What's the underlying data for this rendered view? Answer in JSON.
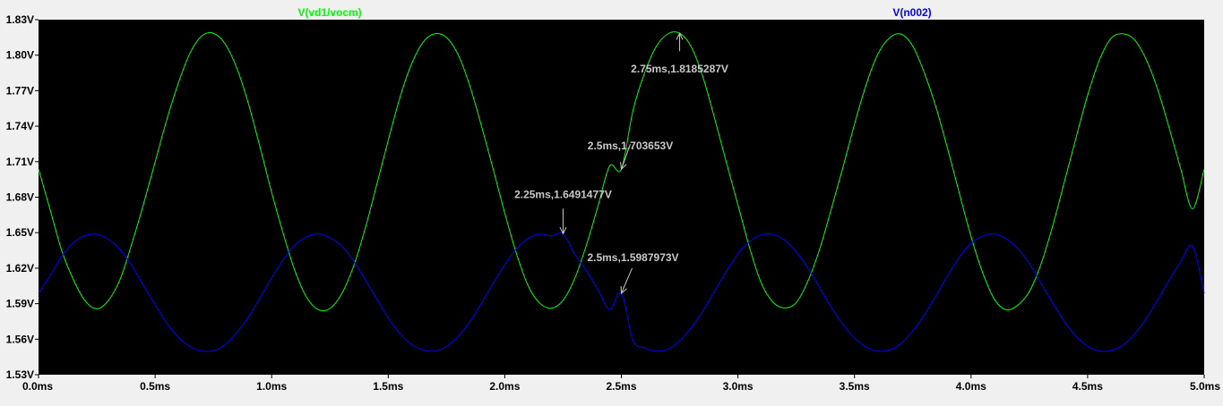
{
  "window": {
    "background": "#000000",
    "frame_color": "#f0f0f0"
  },
  "chart_data": {
    "type": "line",
    "title": "",
    "xlabel": "",
    "ylabel": "",
    "xlim": [
      0,
      5
    ],
    "ylim": [
      1.53,
      1.83
    ],
    "x_unit": "ms",
    "y_unit": "V",
    "grid": false,
    "x_ticks": [
      "0.0ms",
      "0.5ms",
      "1.0ms",
      "1.5ms",
      "2.0ms",
      "2.5ms",
      "3.0ms",
      "3.5ms",
      "4.0ms",
      "4.5ms",
      "5.0ms"
    ],
    "y_ticks": [
      "1.83V",
      "1.80V",
      "1.77V",
      "1.74V",
      "1.71V",
      "1.68V",
      "1.65V",
      "1.62V",
      "1.59V",
      "1.56V",
      "1.53V"
    ],
    "series": [
      {
        "name": "V(vd1/vocm)",
        "color": "#00ff00",
        "x": [
          0,
          0.05,
          0.1,
          0.15,
          0.2,
          0.25,
          0.3,
          0.35,
          0.4,
          0.45,
          0.5,
          0.55,
          0.6,
          0.65,
          0.7,
          0.75,
          0.8,
          0.85,
          0.9,
          0.95,
          1.0,
          1.05,
          1.1,
          1.15,
          1.2,
          1.25,
          1.3,
          1.35,
          1.4,
          1.45,
          1.5,
          1.55,
          1.6,
          1.65,
          1.7,
          1.75,
          1.8,
          1.85,
          1.9,
          1.95,
          2.0,
          2.05,
          2.1,
          2.15,
          2.2,
          2.25,
          2.3,
          2.35,
          2.4,
          2.45,
          2.5,
          2.55,
          2.6,
          2.65,
          2.7,
          2.75,
          2.8,
          2.85,
          2.9,
          2.95,
          3.0,
          3.05,
          3.1,
          3.15,
          3.2,
          3.25,
          3.3,
          3.35,
          3.4,
          3.45,
          3.5,
          3.55,
          3.6,
          3.65,
          3.7,
          3.75,
          3.8,
          3.85,
          3.9,
          3.95,
          4.0,
          4.05,
          4.1,
          4.15,
          4.2,
          4.25,
          4.3,
          4.35,
          4.4,
          4.45,
          4.5,
          4.55,
          4.6,
          4.65,
          4.7,
          4.75,
          4.8,
          4.85,
          4.9,
          4.95,
          5.0
        ],
        "y": [
          1.7037,
          1.6692,
          1.6346,
          1.6101,
          1.5924,
          1.5857,
          1.5928,
          1.6106,
          1.6406,
          1.6739,
          1.7096,
          1.7453,
          1.7765,
          1.8018,
          1.8162,
          1.8185,
          1.8097,
          1.7893,
          1.7592,
          1.7224,
          1.684,
          1.649,
          1.6176,
          1.5954,
          1.5849,
          1.586,
          1.5983,
          1.6209,
          1.6527,
          1.69,
          1.728,
          1.7641,
          1.7925,
          1.8111,
          1.8181,
          1.8149,
          1.8004,
          1.7741,
          1.7402,
          1.7038,
          1.6664,
          1.6323,
          1.6052,
          1.5904,
          1.5862,
          1.5929,
          1.6113,
          1.6394,
          1.6726,
          1.7064,
          1.7037,
          1.7533,
          1.7852,
          1.8074,
          1.8181,
          1.8185,
          1.8069,
          1.7815,
          1.7466,
          1.7097,
          1.6736,
          1.6373,
          1.6075,
          1.5913,
          1.5864,
          1.5909,
          1.609,
          1.6357,
          1.6696,
          1.7048,
          1.7416,
          1.775,
          1.8008,
          1.8145,
          1.8178,
          1.8076,
          1.7849,
          1.7557,
          1.7205,
          1.6832,
          1.6467,
          1.6161,
          1.5938,
          1.5849,
          1.5886,
          1.6003,
          1.6234,
          1.6556,
          1.6927,
          1.73,
          1.7661,
          1.7956,
          1.8141,
          1.8181,
          1.8132,
          1.7969,
          1.7713,
          1.7384,
          1.7034,
          1.6702,
          1.7037
        ]
      },
      {
        "name": "V(n002)",
        "color": "#0000ff",
        "x": [
          0,
          0.05,
          0.1,
          0.15,
          0.2,
          0.25,
          0.3,
          0.35,
          0.4,
          0.45,
          0.5,
          0.55,
          0.6,
          0.65,
          0.7,
          0.75,
          0.8,
          0.85,
          0.9,
          0.95,
          1.0,
          1.05,
          1.1,
          1.15,
          1.2,
          1.25,
          1.3,
          1.35,
          1.4,
          1.45,
          1.5,
          1.55,
          1.6,
          1.65,
          1.7,
          1.75,
          1.8,
          1.85,
          1.9,
          1.95,
          2.0,
          2.05,
          2.1,
          2.15,
          2.2,
          2.25,
          2.3,
          2.35,
          2.4,
          2.45,
          2.5,
          2.55,
          2.6,
          2.65,
          2.7,
          2.75,
          2.8,
          2.85,
          2.9,
          2.95,
          3.0,
          3.05,
          3.1,
          3.15,
          3.2,
          3.25,
          3.3,
          3.35,
          3.4,
          3.45,
          3.5,
          3.55,
          3.6,
          3.65,
          3.7,
          3.75,
          3.8,
          3.85,
          3.9,
          3.95,
          4.0,
          4.05,
          4.1,
          4.15,
          4.2,
          4.25,
          4.3,
          4.35,
          4.4,
          4.45,
          4.5,
          4.55,
          4.6,
          4.65,
          4.7,
          4.75,
          4.8,
          4.85,
          4.9,
          4.95,
          5.0
        ],
        "y": [
          1.5988,
          1.614,
          1.6301,
          1.6417,
          1.6475,
          1.6487,
          1.6442,
          1.6355,
          1.622,
          1.6054,
          1.5892,
          1.5735,
          1.5615,
          1.5538,
          1.55,
          1.5503,
          1.5554,
          1.5655,
          1.5787,
          1.595,
          1.6119,
          1.6273,
          1.6396,
          1.6465,
          1.6491,
          1.6457,
          1.6386,
          1.6264,
          1.6105,
          1.5941,
          1.5781,
          1.5647,
          1.5555,
          1.5509,
          1.55,
          1.554,
          1.5626,
          1.5748,
          1.5905,
          1.6072,
          1.623,
          1.6364,
          1.6451,
          1.6488,
          1.6473,
          1.6491,
          1.6317,
          1.6178,
          1.6014,
          1.585,
          1.5988,
          1.559,
          1.5526,
          1.55,
          1.5515,
          1.5587,
          1.5696,
          1.5841,
          1.6007,
          1.6174,
          1.6322,
          1.6424,
          1.6482,
          1.6485,
          1.6437,
          1.6338,
          1.6201,
          1.6037,
          1.587,
          1.5725,
          1.5609,
          1.5533,
          1.55,
          1.5507,
          1.5565,
          1.5671,
          1.5806,
          1.597,
          1.614,
          1.6293,
          1.6409,
          1.6472,
          1.649,
          1.6448,
          1.6366,
          1.6237,
          1.6072,
          1.5907,
          1.5751,
          1.5625,
          1.5541,
          1.55,
          1.5504,
          1.5546,
          1.564,
          1.577,
          1.5932,
          1.6101,
          1.6257,
          1.6386,
          1.5988
        ]
      }
    ],
    "annotations": [
      {
        "text": "2.75ms,1.8185287V",
        "x": 2.75,
        "y": 1.8185287
      },
      {
        "text": "2.5ms,1.703653V",
        "x": 2.5,
        "y": 1.703653
      },
      {
        "text": "2.25ms,1.6491477V",
        "x": 2.25,
        "y": 1.6491477
      },
      {
        "text": "2.5ms,1.5987973V",
        "x": 2.5,
        "y": 1.5987973
      }
    ]
  }
}
